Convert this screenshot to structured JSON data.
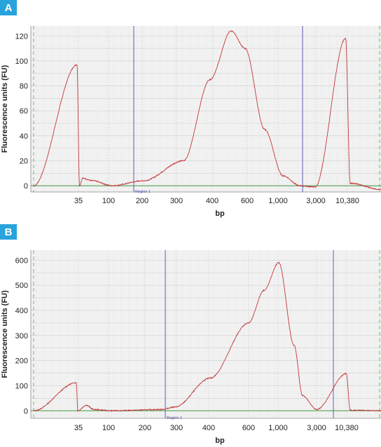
{
  "colors": {
    "badge": "#29a3dc",
    "trace": "#c2373a",
    "baseline": "#3f9a3f",
    "region_marker": "#5a5abf",
    "ladder_marker": "#55b055",
    "plot_bg": "#f1f1f1",
    "grid": "#cfcfcf"
  },
  "chart_data": [
    {
      "panel_label": "A",
      "type": "line",
      "xlabel": "bp",
      "ylabel": "Fluorescence units (FU)",
      "x_scale": "ladder (non-linear, categorical ticks)",
      "x_ticks": [
        "35",
        "100",
        "200",
        "300",
        "400",
        "600",
        "1,000",
        "3,000",
        "10,380"
      ],
      "y_ticks": [
        "0",
        "20",
        "40",
        "60",
        "80",
        "100",
        "120"
      ],
      "ylim": [
        -5,
        128
      ],
      "grid": true,
      "region_label": "Region 1",
      "region_bounds": [
        "~170",
        "~2,000"
      ],
      "series": [
        {
          "x": [
            "<35",
            "35",
            "35",
            "~40",
            "~50",
            "100",
            "200",
            "300",
            "400",
            "500",
            "600",
            "800",
            "1,000",
            "2,000",
            "3,000",
            "10,380",
            "10,380",
            ">10,380"
          ],
          "y": [
            0,
            97,
            0,
            6,
            4,
            0,
            4,
            20,
            85,
            124,
            110,
            45,
            8,
            0,
            -1,
            118,
            2,
            -3
          ]
        }
      ]
    },
    {
      "panel_label": "B",
      "type": "line",
      "xlabel": "bp",
      "ylabel": "Fluorescence units (FU)",
      "x_scale": "ladder (non-linear, categorical ticks)",
      "x_ticks": [
        "35",
        "100",
        "200",
        "300",
        "400",
        "600",
        "1,000",
        "3,000",
        "10,380"
      ],
      "y_ticks": [
        "0",
        "100",
        "200",
        "300",
        "400",
        "500",
        "600"
      ],
      "ylim": [
        -30,
        640
      ],
      "grid": true,
      "region_label": "Region 1",
      "region_bounds": [
        "~250",
        "~5,000"
      ],
      "series": [
        {
          "x": [
            "<35",
            "35",
            "35",
            "~40",
            "~50",
            "100",
            "200",
            "300",
            "400",
            "600",
            "800",
            "1,000",
            "1,500",
            "2,000",
            "3,000",
            "10,380",
            "10,380",
            ">10,380"
          ],
          "y": [
            0,
            112,
            0,
            22,
            5,
            0,
            5,
            15,
            130,
            350,
            480,
            590,
            260,
            60,
            5,
            148,
            2,
            0
          ]
        }
      ]
    }
  ]
}
